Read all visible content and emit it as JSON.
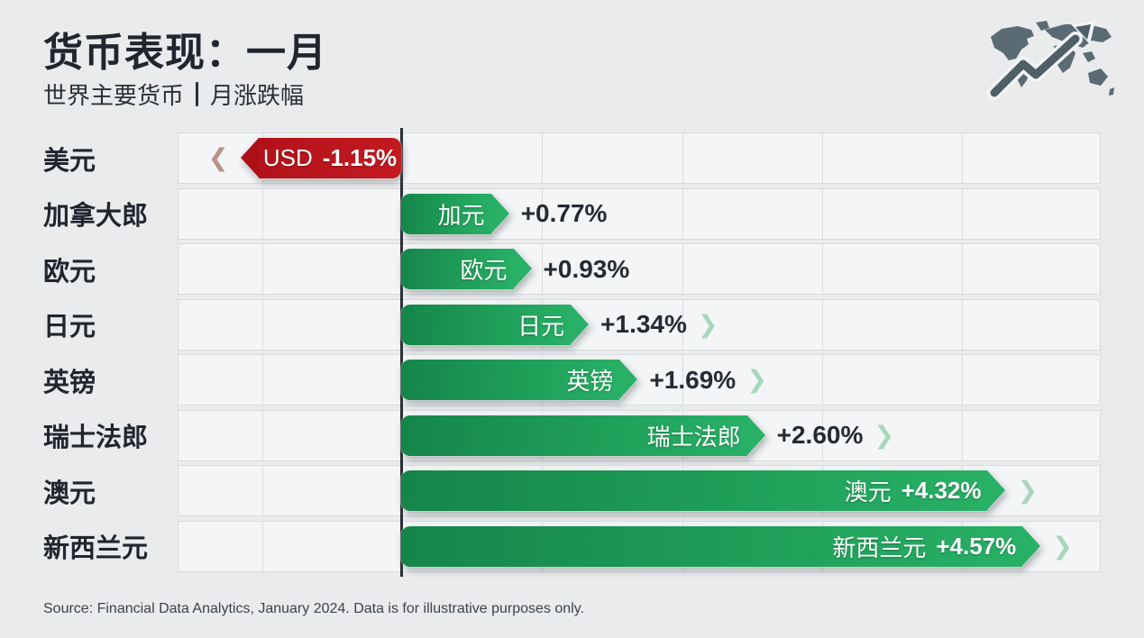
{
  "header": {
    "title": "货币表现：一月",
    "subtitle_left": "世界主要货币",
    "subtitle_right": "月涨跌幅",
    "logo": "world-map-trend-arrow"
  },
  "chart_data": {
    "type": "bar",
    "orientation": "horizontal",
    "title": "货币表现：一月",
    "subtitle": "世界主要货币｜月涨跌幅",
    "unit": "%",
    "axis": {
      "xmin": -1.6,
      "xmax": 5.0,
      "gridline_step": 1,
      "grid": true,
      "zero_line": true
    },
    "colors": {
      "positive": "#1f9e58",
      "negative": "#b9141c"
    },
    "categories": [
      "美元",
      "加拿大郎",
      "欧元",
      "日元",
      "英镑",
      "瑞士法郎",
      "澳元",
      "新西兰元"
    ],
    "rows": [
      {
        "category": "美元",
        "bar_label": "USD",
        "value": -1.15,
        "value_label": "-1.15%",
        "value_inside": true,
        "chevron": "left",
        "color": "negative"
      },
      {
        "category": "加拿大郎",
        "bar_label": "加元",
        "value": 0.77,
        "value_label": "+0.77%",
        "value_inside": false,
        "chevron": "none",
        "color": "positive"
      },
      {
        "category": "欧元",
        "bar_label": "欧元",
        "value": 0.93,
        "value_label": "+0.93%",
        "value_inside": false,
        "chevron": "none",
        "color": "positive"
      },
      {
        "category": "日元",
        "bar_label": "日元",
        "value": 1.34,
        "value_label": "+1.34%",
        "value_inside": false,
        "chevron": "right",
        "color": "positive"
      },
      {
        "category": "英镑",
        "bar_label": "英镑",
        "value": 1.69,
        "value_label": "+1.69%",
        "value_inside": false,
        "chevron": "right",
        "color": "positive"
      },
      {
        "category": "瑞士法郎",
        "bar_label": "瑞士法郎",
        "value": 2.6,
        "value_label": "+2.60%",
        "value_inside": false,
        "chevron": "right",
        "color": "positive"
      },
      {
        "category": "澳元",
        "bar_label": "澳元",
        "value": 4.32,
        "value_label": "+4.32%",
        "value_inside": true,
        "chevron": "right",
        "color": "positive"
      },
      {
        "category": "新西兰元",
        "bar_label": "新西兰元",
        "value": 4.57,
        "value_label": "+4.57%",
        "value_inside": true,
        "chevron": "right",
        "color": "positive"
      }
    ],
    "glyphs": {
      "chevron_right": "❯",
      "chevron_left": "❮"
    }
  },
  "footer": {
    "source": "Source: Financial Data Analytics, January 2024. Data is for illustrative purposes only."
  }
}
